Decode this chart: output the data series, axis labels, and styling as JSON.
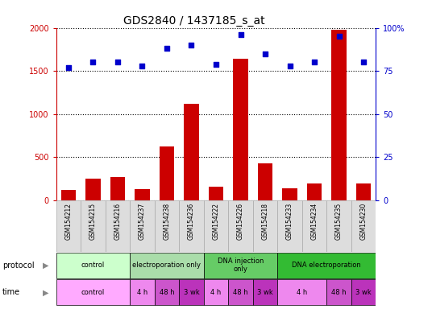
{
  "title": "GDS2840 / 1437185_s_at",
  "samples": [
    "GSM154212",
    "GSM154215",
    "GSM154216",
    "GSM154237",
    "GSM154238",
    "GSM154236",
    "GSM154222",
    "GSM154226",
    "GSM154218",
    "GSM154233",
    "GSM154234",
    "GSM154235",
    "GSM154230"
  ],
  "counts": [
    120,
    250,
    270,
    130,
    620,
    1120,
    160,
    1640,
    430,
    140,
    190,
    1980,
    190
  ],
  "percentiles": [
    77,
    80,
    80,
    78,
    88,
    90,
    79,
    96,
    85,
    78,
    80,
    95,
    80
  ],
  "bar_color": "#cc0000",
  "dot_color": "#0000cc",
  "ylim_left": [
    0,
    2000
  ],
  "ylim_right": [
    0,
    100
  ],
  "yticks_left": [
    0,
    500,
    1000,
    1500,
    2000
  ],
  "yticks_right": [
    0,
    25,
    50,
    75,
    100
  ],
  "protocol_data": [
    {
      "label": "control",
      "start": 0,
      "end": 3,
      "color": "#ccffcc"
    },
    {
      "label": "electroporation only",
      "start": 3,
      "end": 6,
      "color": "#aaddaa"
    },
    {
      "label": "DNA injection\nonly",
      "start": 6,
      "end": 9,
      "color": "#66cc66"
    },
    {
      "label": "DNA electroporation",
      "start": 9,
      "end": 13,
      "color": "#33bb33"
    }
  ],
  "time_data": [
    {
      "label": "control",
      "start": 0,
      "end": 3,
      "color": "#ffaaff"
    },
    {
      "label": "4 h",
      "start": 3,
      "end": 4,
      "color": "#ee88ee"
    },
    {
      "label": "48 h",
      "start": 4,
      "end": 5,
      "color": "#cc55cc"
    },
    {
      "label": "3 wk",
      "start": 5,
      "end": 6,
      "color": "#bb33bb"
    },
    {
      "label": "4 h",
      "start": 6,
      "end": 7,
      "color": "#ee88ee"
    },
    {
      "label": "48 h",
      "start": 7,
      "end": 8,
      "color": "#cc55cc"
    },
    {
      "label": "3 wk",
      "start": 8,
      "end": 9,
      "color": "#bb33bb"
    },
    {
      "label": "4 h",
      "start": 9,
      "end": 11,
      "color": "#ee88ee"
    },
    {
      "label": "48 h",
      "start": 11,
      "end": 12,
      "color": "#cc55cc"
    },
    {
      "label": "3 wk",
      "start": 12,
      "end": 13,
      "color": "#bb33bb"
    }
  ],
  "sample_bg": "#dddddd",
  "bg_color": "#ffffff",
  "tick_fontsize": 7,
  "title_fontsize": 10,
  "sample_fontsize": 5.5,
  "row_fontsize": 6,
  "legend_fontsize": 7
}
